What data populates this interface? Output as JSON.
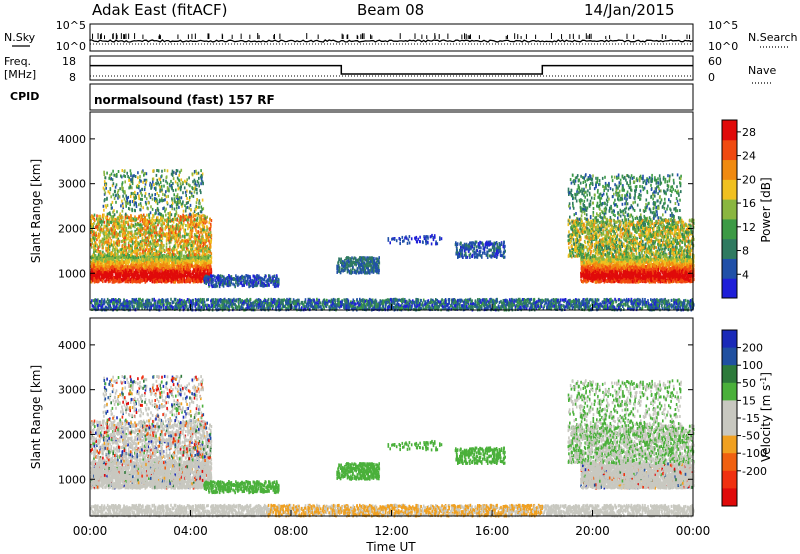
{
  "header": {
    "station": "Adak East (fitACF)",
    "beam": "Beam 08",
    "date": "14/Jan/2015"
  },
  "labels": {
    "nsky": "N.Sky",
    "nsearch": "N.Search",
    "freq": "Freq.",
    "mhz": "[MHz]",
    "nave": "Nave",
    "cpid": "CPID",
    "cpid_value": "normalsound (fast) 157 RF"
  },
  "colors": {
    "power": [
      "#1f1fd8",
      "#2050a8",
      "#2f7a60",
      "#3c9a45",
      "#8ab640",
      "#f0c020",
      "#f08a10",
      "#f04a10",
      "#e00a0a"
    ],
    "velocity": [
      "#1a2ab8",
      "#2050a0",
      "#2d7a3a",
      "#4ab03a",
      "#c8c8c0",
      "#c8c8c0",
      "#f0a020",
      "#f06010",
      "#f03010",
      "#e00a0a"
    ]
  },
  "chart_data": [
    {
      "type": "line",
      "name": "sky-search-noise",
      "left_ticks": [
        "10^5",
        "10^0"
      ],
      "right_ticks": [
        "10^5",
        "10^0"
      ],
      "series": [
        {
          "name": "N.Sky",
          "style": "solid"
        },
        {
          "name": "N.Search",
          "style": "dotted"
        }
      ]
    },
    {
      "type": "line",
      "name": "freq-nave",
      "left_ticks": [
        18,
        8
      ],
      "right_ticks": [
        60,
        0
      ],
      "series": [
        {
          "name": "Freq.",
          "x_hours": [
            0,
            10,
            10,
            18,
            18,
            24
          ],
          "y_mhz": [
            14,
            14,
            10.5,
            10.5,
            14,
            14
          ]
        },
        {
          "name": "Nave",
          "style": "dotted"
        }
      ]
    },
    {
      "type": "heatmap",
      "name": "power",
      "xlabel": "",
      "ylabel": "Slant Range [km]",
      "y_ticks": [
        1000,
        2000,
        3000,
        4000
      ],
      "ylim": [
        180,
        4600
      ],
      "xlim": [
        0,
        24
      ],
      "colorbar": {
        "label": "Power [dB]",
        "ticks": [
          4,
          8,
          12,
          16,
          20,
          24,
          28
        ],
        "range": [
          0,
          30
        ]
      }
    },
    {
      "type": "heatmap",
      "name": "velocity",
      "xlabel": "Time UT",
      "ylabel": "Slant Range [km]",
      "y_ticks": [
        1000,
        2000,
        3000,
        4000
      ],
      "ylim": [
        180,
        4600
      ],
      "xlim": [
        0,
        24
      ],
      "x_ticks": [
        "00:00",
        "04:00",
        "08:00",
        "12:00",
        "16:00",
        "20:00",
        "00:00"
      ],
      "colorbar": {
        "label": "Velocity [m s-1]",
        "ticks": [
          200,
          100,
          50,
          15,
          -15,
          -50,
          -100,
          -200
        ]
      }
    }
  ]
}
